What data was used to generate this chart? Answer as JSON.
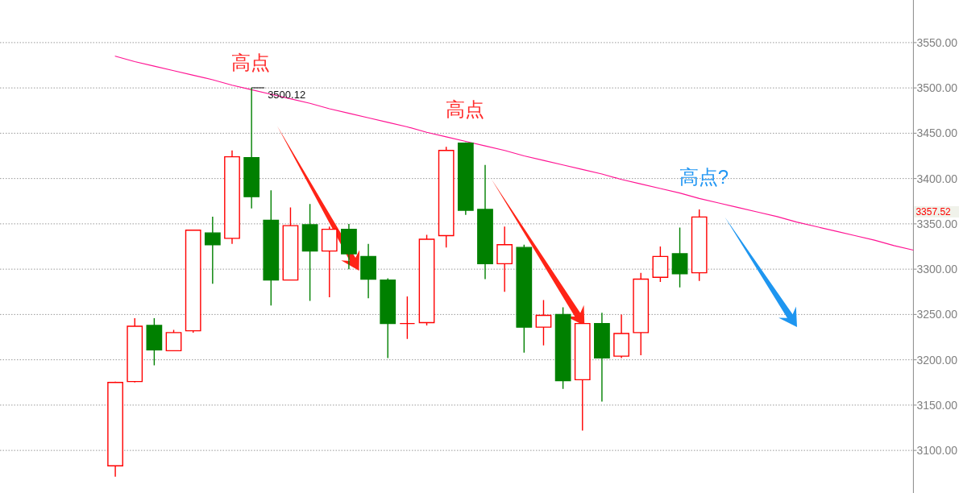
{
  "chart_data": {
    "type": "candlestick",
    "categories": [
      null,
      null,
      null,
      null,
      null,
      null,
      null,
      null,
      null,
      null,
      null,
      null,
      null,
      null,
      null,
      null,
      null,
      null,
      null,
      null,
      null,
      null,
      null,
      null,
      null,
      null,
      null,
      null,
      null,
      null,
      null,
      null,
      null,
      null,
      null,
      null,
      null,
      null,
      null,
      null,
      null,
      null,
      null,
      null,
      null,
      null,
      null,
      null
    ],
    "ohlc": [
      [
        null,
        null,
        null,
        null
      ],
      [
        null,
        null,
        null,
        null
      ],
      [
        null,
        null,
        null,
        null
      ],
      [
        null,
        null,
        null,
        null
      ],
      [
        null,
        null,
        null,
        null
      ],
      [
        null,
        null,
        null,
        null
      ],
      [
        3083,
        3176,
        3071,
        3175
      ],
      [
        3176,
        3246,
        3175,
        3237
      ],
      [
        3238,
        3246,
        3194,
        3211
      ],
      [
        3210,
        3233,
        3210,
        3230
      ],
      [
        3232,
        3343,
        3230,
        3343
      ],
      [
        3340,
        3358,
        3284,
        3327
      ],
      [
        3334,
        3431,
        3328,
        3424
      ],
      [
        3423,
        3500.12,
        3367,
        3380
      ],
      [
        3354,
        3387,
        3260,
        3288
      ],
      [
        3288,
        3368,
        3288,
        3348
      ],
      [
        3349,
        3372,
        3265,
        3320
      ],
      [
        3320,
        3347,
        3269,
        3344
      ],
      [
        3344,
        3350,
        3300,
        3317
      ],
      [
        3314,
        3328,
        3268,
        3289
      ],
      [
        3288,
        3290,
        3202,
        3240
      ],
      [
        3240,
        3270,
        3223,
        3240
      ],
      [
        3241,
        3338,
        3238,
        3333
      ],
      [
        3337,
        3435,
        3324,
        3431
      ],
      [
        3439,
        3440,
        3360,
        3365
      ],
      [
        3366,
        3415,
        3289,
        3306
      ],
      [
        3306,
        3347,
        3275,
        3327
      ],
      [
        3324,
        3327,
        3208,
        3236
      ],
      [
        3236,
        3266,
        3216,
        3249
      ],
      [
        3250,
        3258,
        3168,
        3177
      ],
      [
        3178,
        3240,
        3122,
        3240
      ],
      [
        3240,
        3252,
        3154,
        3202
      ],
      [
        3204,
        3250,
        3202,
        3229
      ],
      [
        3230,
        3296,
        3205,
        3289
      ],
      [
        3291,
        3325,
        3286,
        3314
      ],
      [
        3317,
        3346,
        3280,
        3295
      ],
      [
        3296,
        3366,
        3287,
        3357.52
      ],
      [
        null,
        null,
        null,
        null
      ],
      [
        null,
        null,
        null,
        null
      ],
      [
        null,
        null,
        null,
        null
      ],
      [
        null,
        null,
        null,
        null
      ],
      [
        null,
        null,
        null,
        null
      ],
      [
        null,
        null,
        null,
        null
      ],
      [
        null,
        null,
        null,
        null
      ],
      [
        null,
        null,
        null,
        null
      ],
      [
        null,
        null,
        null,
        null
      ],
      [
        null,
        null,
        null,
        null
      ],
      [
        null,
        null,
        null,
        null
      ]
    ],
    "colors": [
      null,
      null,
      null,
      null,
      null,
      null,
      "#ff0000",
      "#ff0000",
      "#008000",
      "#ff0000",
      "#ff0000",
      "#008000",
      "#ff0000",
      "#008000",
      "#008000",
      "#ff0000",
      "#008000",
      "#ff0000",
      "#008000",
      "#008000",
      "#008000",
      "#ff0000",
      "#ff0000",
      "#ff0000",
      "#008000",
      "#008000",
      "#ff0000",
      "#008000",
      "#ff0000",
      "#008000",
      "#ff0000",
      "#008000",
      "#ff0000",
      "#ff0000",
      "#ff0000",
      "#008000",
      "#ff0000",
      null,
      null,
      null,
      null,
      null,
      null,
      null,
      null,
      null,
      null,
      null
    ],
    "series": [
      {
        "type": "line",
        "color": "#ff1493",
        "values": [
          null,
          null,
          null,
          null,
          null,
          null,
          3535,
          3529,
          3524,
          3519,
          3514,
          3509,
          3503,
          3498,
          3493,
          3488,
          3483,
          3477,
          3472,
          3467,
          3462,
          3457,
          3451,
          3446,
          3441,
          3436,
          3431,
          3425,
          3420,
          3415,
          3410,
          3405,
          3399,
          3394,
          3389,
          3384,
          3378,
          3373,
          3368,
          3363,
          3358,
          3352,
          3347,
          3342,
          3337,
          3332,
          3326,
          3321
        ]
      }
    ],
    "ylim": [
      3053,
      3597
    ],
    "yticks": [
      {
        "value": 3100,
        "label": "3100.00"
      },
      {
        "value": 3150,
        "label": "3150.00"
      },
      {
        "value": 3200,
        "label": "3200.00"
      },
      {
        "value": 3250,
        "label": "3250.00"
      },
      {
        "value": 3300,
        "label": "3300.00"
      },
      {
        "value": 3350,
        "label": "3350.00"
      },
      {
        "value": 3400,
        "label": "3400.00"
      },
      {
        "value": 3450,
        "label": "3450.00"
      },
      {
        "value": 3500,
        "label": "3500.00"
      },
      {
        "value": 3550,
        "label": "3550.00"
      }
    ],
    "grid": "y",
    "annotations": [
      {
        "text": "高点",
        "y": 3500.12
      },
      "3500.12",
      {
        "text": "高点",
        "y": 3440
      },
      "高点?",
      "3357.52"
    ]
  }
}
